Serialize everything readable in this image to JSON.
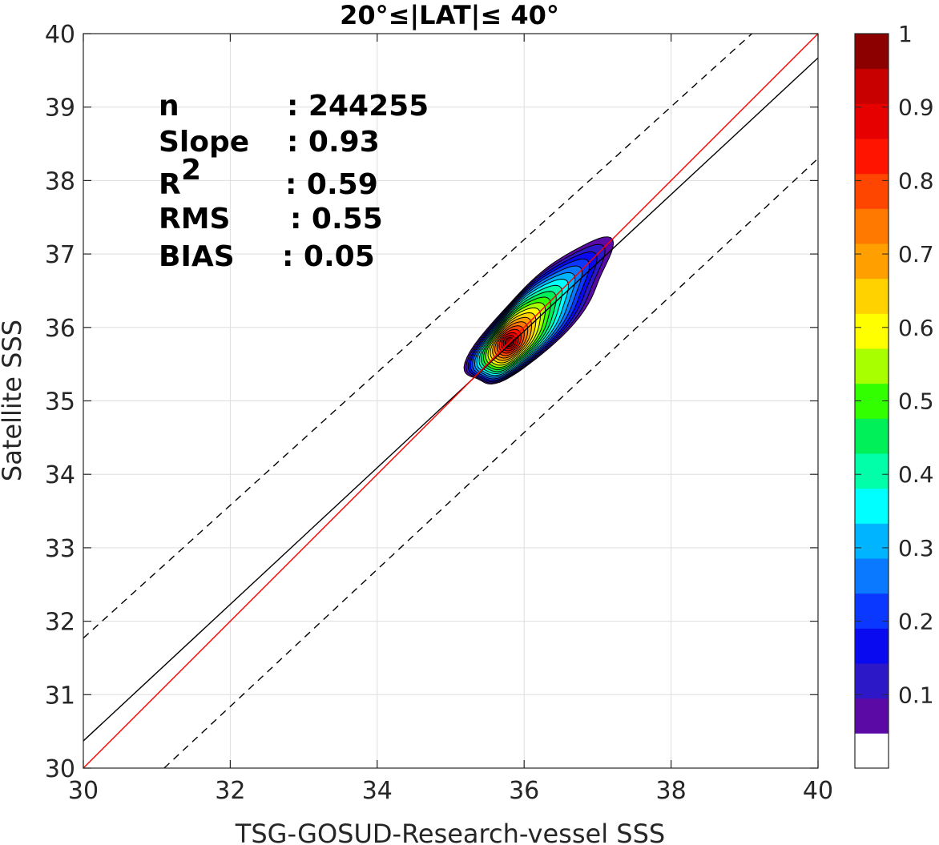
{
  "chart_data": {
    "type": "contour-density-scatter",
    "title": "20°≤|LAT|≤ 40°",
    "xlabel": "TSG-GOSUD-Research-vessel SSS",
    "ylabel": "Satellite SSS",
    "xlim": [
      30,
      40
    ],
    "ylim": [
      30,
      40
    ],
    "xticks": [
      "30",
      "32",
      "34",
      "36",
      "38",
      "40"
    ],
    "yticks": [
      "30",
      "31",
      "32",
      "33",
      "34",
      "35",
      "36",
      "37",
      "38",
      "39",
      "40"
    ],
    "grid": true,
    "stats": [
      {
        "label": "n",
        "value": ": 244255"
      },
      {
        "label": "Slope",
        "value": ": 0.93"
      },
      {
        "label": "R",
        "sup": "2",
        "value": ": 0.59"
      },
      {
        "label": "RMS",
        "value": ": 0.55"
      },
      {
        "label": "BIAS",
        "value": ": 0.05"
      }
    ],
    "lines": {
      "identity": {
        "color": "#ff0000",
        "points": [
          [
            30,
            30
          ],
          [
            40,
            40
          ]
        ]
      },
      "regression": {
        "color": "#000000",
        "slope": 0.93,
        "points": [
          [
            30,
            30.37
          ],
          [
            40,
            39.67
          ]
        ]
      },
      "upper_bound": {
        "color": "#000000",
        "style": "dashed",
        "points": [
          [
            30,
            31.77
          ],
          [
            39.1,
            40
          ]
        ]
      },
      "lower_bound": {
        "color": "#000000",
        "style": "dashed",
        "points": [
          [
            31.1,
            30
          ],
          [
            40,
            38.3
          ]
        ]
      }
    },
    "density_peak": {
      "x": 35.8,
      "y": 35.8,
      "value": 1.0
    },
    "colorbar": {
      "range": [
        0,
        1
      ],
      "tick_labels": [
        "0.1",
        "0.2",
        "0.3",
        "0.4",
        "0.5",
        "0.6",
        "0.7",
        "0.8",
        "0.9",
        "1"
      ],
      "tick_values": [
        0.1,
        0.2,
        0.3,
        0.4,
        0.5,
        0.6,
        0.7,
        0.8,
        0.9,
        1.0
      ],
      "colors": [
        "#ffffff",
        "#5b0aa6",
        "#2d18c8",
        "#0a0af0",
        "#0a38ff",
        "#0a78ff",
        "#00b4ff",
        "#00ffff",
        "#00ffa8",
        "#00f05a",
        "#32ff00",
        "#a8ff00",
        "#ffff00",
        "#ffd200",
        "#ffa000",
        "#ff7800",
        "#ff4600",
        "#ff1400",
        "#e60000",
        "#c80000",
        "#8c0000"
      ]
    }
  }
}
